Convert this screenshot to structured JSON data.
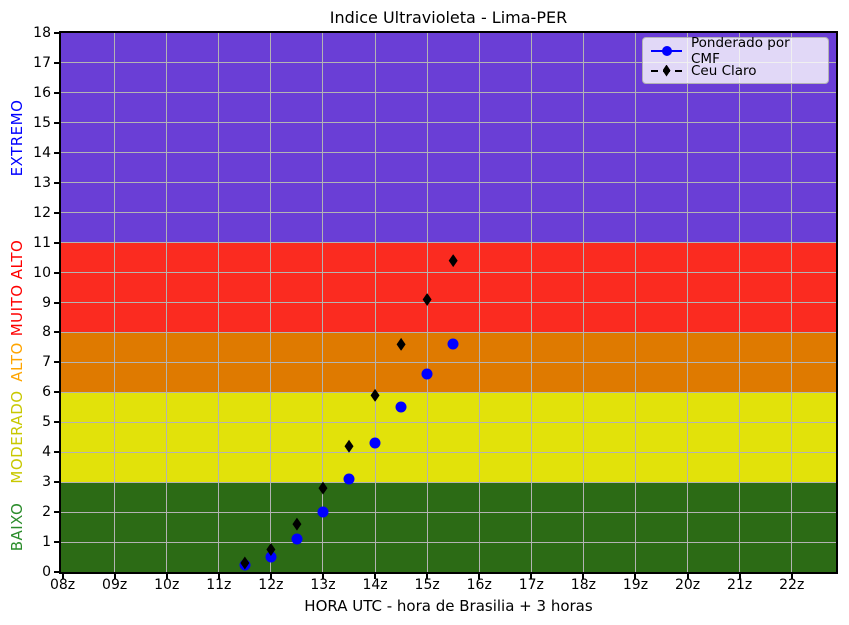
{
  "chart_data": {
    "type": "scatter",
    "title": "Indice Ultravioleta - Lima-PER",
    "xlabel": "HORA UTC - hora de Brasilia + 3 horas",
    "xlim": [
      7.97,
      22.85
    ],
    "ylim": [
      0,
      18
    ],
    "grid": true,
    "grid_color": "#b3b3b3",
    "legend_position": "upper right",
    "x_ticks": [
      8,
      9,
      10,
      11,
      12,
      13,
      14,
      15,
      16,
      17,
      18,
      19,
      20,
      21,
      22
    ],
    "x_tick_labels": [
      "08z",
      "09z",
      "10z",
      "11z",
      "12z",
      "13z",
      "14z",
      "15z",
      "16z",
      "17z",
      "18z",
      "19z",
      "20z",
      "21z",
      "22z"
    ],
    "y_ticks": [
      0,
      1,
      2,
      3,
      4,
      5,
      6,
      7,
      8,
      9,
      10,
      11,
      12,
      13,
      14,
      15,
      16,
      17,
      18
    ],
    "series": [
      {
        "name": "Ponderado por CMF",
        "marker": "circle",
        "line": "solid",
        "color": "#0000ff",
        "x": [
          11.5,
          12,
          12.5,
          13,
          13.5,
          14,
          14.5,
          15,
          15.5
        ],
        "y": [
          0.25,
          0.5,
          1.1,
          2.0,
          3.1,
          4.3,
          5.5,
          6.6,
          7.6
        ]
      },
      {
        "name": "Ceu Claro",
        "marker": "diamond",
        "line": "dashed",
        "color": "#000000",
        "x": [
          11.5,
          12,
          12.5,
          13,
          13.5,
          14,
          14.5,
          15,
          15.5
        ],
        "y": [
          0.3,
          0.75,
          1.6,
          2.8,
          4.2,
          5.9,
          7.6,
          9.1,
          10.4
        ]
      }
    ],
    "bands": [
      {
        "label": "EXTREMO",
        "label_color": "#0000ff",
        "from": 11,
        "to": 18,
        "color": "#6a3ed6"
      },
      {
        "label": "MUITO ALTO",
        "label_color": "#ff0000",
        "from": 8,
        "to": 11,
        "color": "#fb2b20"
      },
      {
        "label": "ALTO",
        "label_color": "#ffa500",
        "from": 6,
        "to": 8,
        "color": "#df7a00"
      },
      {
        "label": "MODERADO",
        "label_color": "#c8c800",
        "from": 3,
        "to": 6,
        "color": "#e2e20a"
      },
      {
        "label": "BAIXO",
        "label_color": "#2a8c2a",
        "from": 0,
        "to": 3,
        "color": "#2c6b15"
      }
    ]
  }
}
